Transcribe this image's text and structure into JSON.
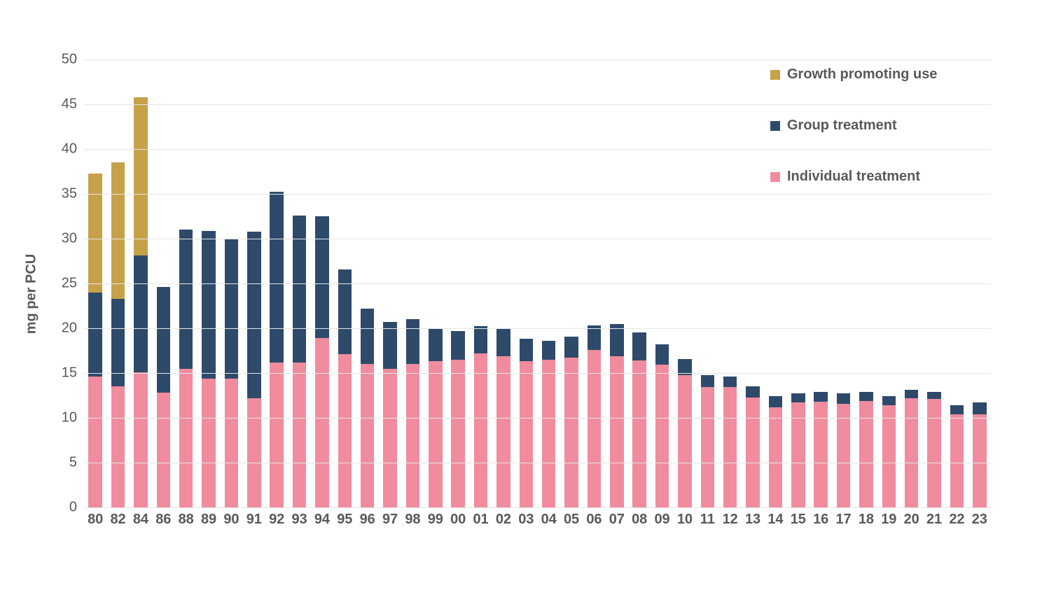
{
  "chart": {
    "type": "stacked-bar",
    "background_color": "#ffffff",
    "grid_color": "#e6e6e6",
    "text_color": "#595959",
    "axis_label_fontsize": 20,
    "tick_fontsize": 20,
    "y_axis": {
      "label": "mg per PCU",
      "min": 0,
      "max": 50,
      "tick_step": 5,
      "ticks": [
        0,
        5,
        10,
        15,
        20,
        25,
        30,
        35,
        40,
        45,
        50
      ]
    },
    "series": [
      {
        "key": "individual",
        "label": "Individual treatment",
        "color": "#f08c9e"
      },
      {
        "key": "group",
        "label": "Group treatment",
        "color": "#2e4a6a"
      },
      {
        "key": "growth",
        "label": "Growth promoting use",
        "color": "#c6a14a"
      }
    ],
    "legend_order": [
      "growth",
      "group",
      "individual"
    ],
    "bar_width_ratio": 0.6,
    "data": [
      {
        "x": "80",
        "individual": 14.6,
        "group": 9.4,
        "growth": 13.3
      },
      {
        "x": "82",
        "individual": 13.5,
        "group": 9.8,
        "growth": 15.2
      },
      {
        "x": "84",
        "individual": 15.1,
        "group": 13.0,
        "growth": 17.7
      },
      {
        "x": "86",
        "individual": 12.8,
        "group": 11.8,
        "growth": 0.0
      },
      {
        "x": "88",
        "individual": 15.5,
        "group": 15.5,
        "growth": 0.0
      },
      {
        "x": "89",
        "individual": 14.4,
        "group": 16.5,
        "growth": 0.0
      },
      {
        "x": "90",
        "individual": 14.4,
        "group": 15.5,
        "growth": 0.0
      },
      {
        "x": "91",
        "individual": 12.2,
        "group": 18.6,
        "growth": 0.0
      },
      {
        "x": "92",
        "individual": 16.2,
        "group": 19.0,
        "growth": 0.0
      },
      {
        "x": "93",
        "individual": 16.2,
        "group": 16.4,
        "growth": 0.0
      },
      {
        "x": "94",
        "individual": 18.9,
        "group": 13.6,
        "growth": 0.0
      },
      {
        "x": "95",
        "individual": 17.1,
        "group": 9.5,
        "growth": 0.0
      },
      {
        "x": "96",
        "individual": 16.0,
        "group": 6.2,
        "growth": 0.0
      },
      {
        "x": "97",
        "individual": 15.5,
        "group": 5.2,
        "growth": 0.0
      },
      {
        "x": "98",
        "individual": 16.0,
        "group": 5.0,
        "growth": 0.0
      },
      {
        "x": "99",
        "individual": 16.3,
        "group": 3.7,
        "growth": 0.0
      },
      {
        "x": "00",
        "individual": 16.5,
        "group": 3.2,
        "growth": 0.0
      },
      {
        "x": "01",
        "individual": 17.2,
        "group": 3.0,
        "growth": 0.0
      },
      {
        "x": "02",
        "individual": 16.9,
        "group": 3.1,
        "growth": 0.0
      },
      {
        "x": "03",
        "individual": 16.3,
        "group": 2.5,
        "growth": 0.0
      },
      {
        "x": "04",
        "individual": 16.5,
        "group": 2.1,
        "growth": 0.0
      },
      {
        "x": "05",
        "individual": 16.7,
        "group": 2.4,
        "growth": 0.0
      },
      {
        "x": "06",
        "individual": 17.6,
        "group": 2.7,
        "growth": 0.0
      },
      {
        "x": "07",
        "individual": 16.9,
        "group": 3.6,
        "growth": 0.0
      },
      {
        "x": "08",
        "individual": 16.4,
        "group": 3.1,
        "growth": 0.0
      },
      {
        "x": "09",
        "individual": 15.9,
        "group": 2.3,
        "growth": 0.0
      },
      {
        "x": "10",
        "individual": 14.8,
        "group": 1.8,
        "growth": 0.0
      },
      {
        "x": "11",
        "individual": 13.4,
        "group": 1.4,
        "growth": 0.0
      },
      {
        "x": "12",
        "individual": 13.4,
        "group": 1.2,
        "growth": 0.0
      },
      {
        "x": "13",
        "individual": 12.3,
        "group": 1.2,
        "growth": 0.0
      },
      {
        "x": "14",
        "individual": 11.2,
        "group": 1.2,
        "growth": 0.0
      },
      {
        "x": "15",
        "individual": 11.7,
        "group": 1.0,
        "growth": 0.0
      },
      {
        "x": "16",
        "individual": 11.8,
        "group": 1.1,
        "growth": 0.0
      },
      {
        "x": "17",
        "individual": 11.6,
        "group": 1.1,
        "growth": 0.0
      },
      {
        "x": "18",
        "individual": 11.9,
        "group": 1.0,
        "growth": 0.0
      },
      {
        "x": "19",
        "individual": 11.4,
        "group": 1.0,
        "growth": 0.0
      },
      {
        "x": "20",
        "individual": 12.2,
        "group": 0.9,
        "growth": 0.0
      },
      {
        "x": "21",
        "individual": 12.1,
        "group": 0.8,
        "growth": 0.0
      },
      {
        "x": "22",
        "individual": 10.4,
        "group": 1.0,
        "growth": 0.0
      },
      {
        "x": "23",
        "individual": 10.4,
        "group": 1.3,
        "growth": 0.0
      }
    ]
  }
}
